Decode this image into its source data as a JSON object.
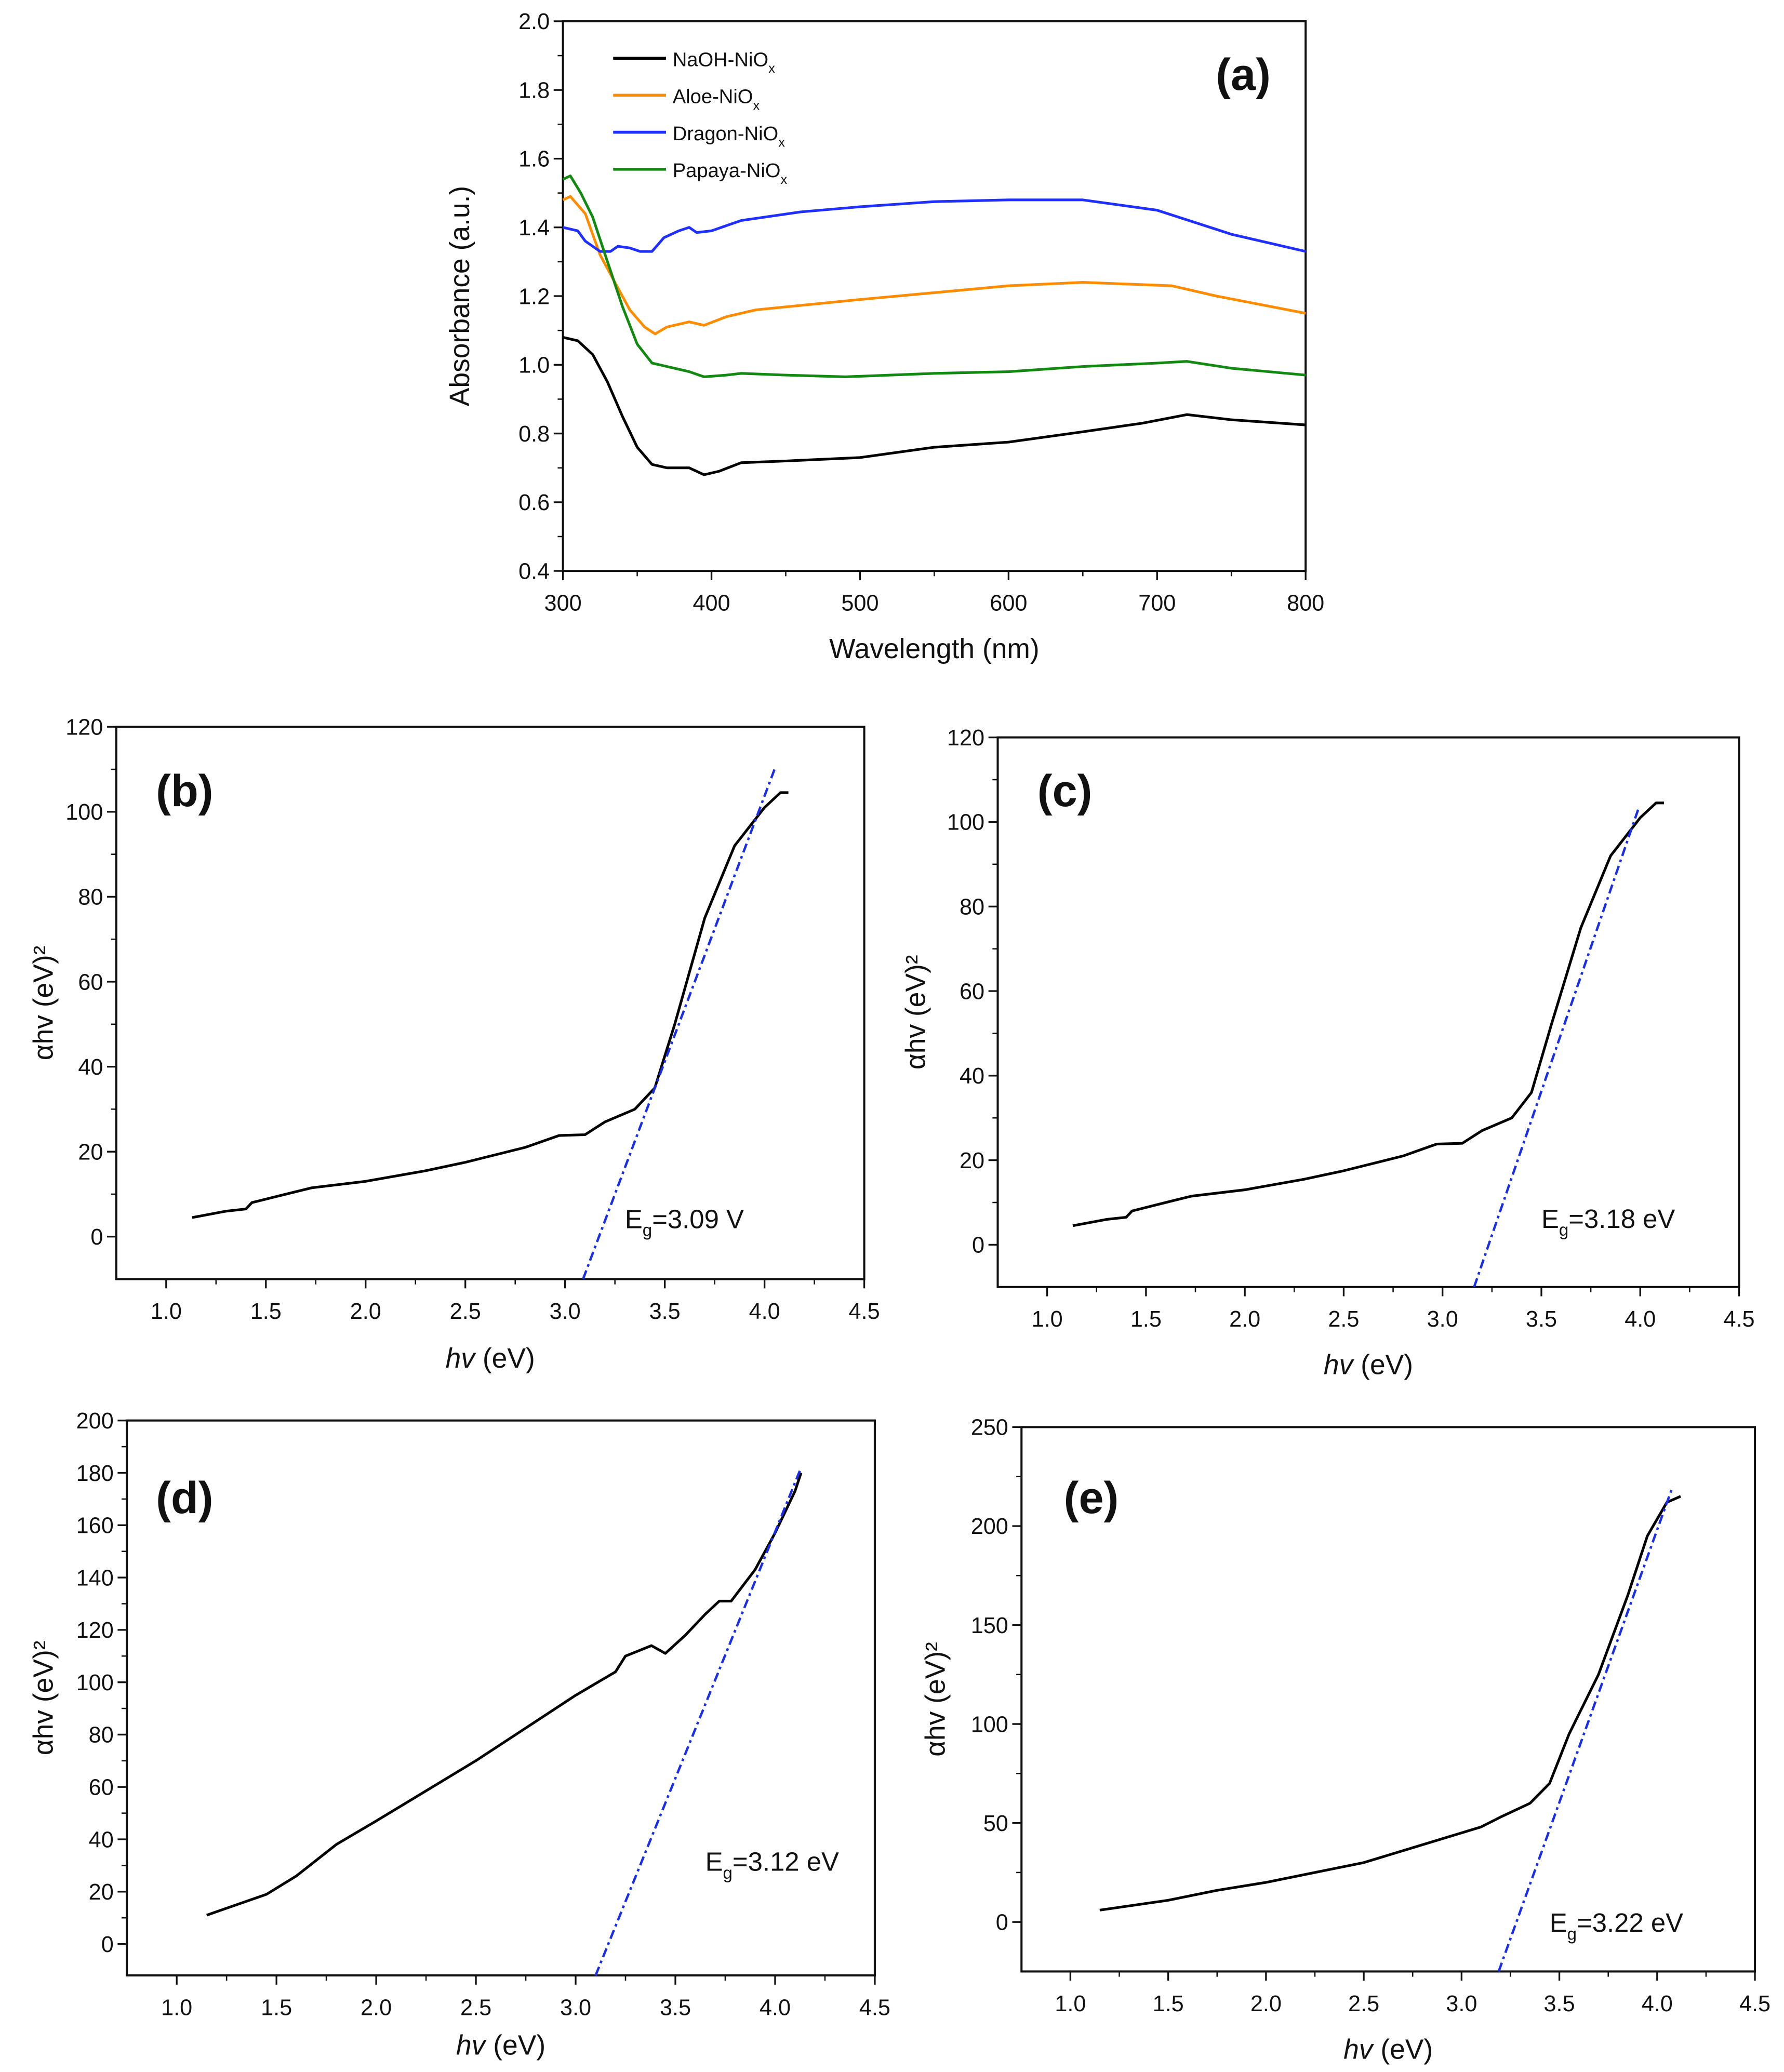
{
  "chart_data": [
    {
      "panel": "(a)",
      "type": "line",
      "xlabel": "Wavelength (nm)",
      "ylabel": "Absorbance (a.u.)",
      "xlim": [
        300,
        800
      ],
      "ylim": [
        0.4,
        2.0
      ],
      "xticks": [
        300,
        400,
        500,
        600,
        700,
        800
      ],
      "yticks": [
        0.4,
        0.6,
        0.8,
        1.0,
        1.2,
        1.4,
        1.6,
        1.8,
        2.0
      ],
      "yticklabels": [
        "0.4",
        "0.6",
        "0.8",
        "1.0",
        "1.2",
        "1.4",
        "1.6",
        "1.8",
        "2.0"
      ],
      "legend_position": "top-left",
      "series": [
        {
          "name": "NaOH-NiO",
          "sub": "x",
          "color": "#000000",
          "points": [
            [
              300,
              1.08
            ],
            [
              310,
              1.07
            ],
            [
              320,
              1.03
            ],
            [
              330,
              0.95
            ],
            [
              340,
              0.85
            ],
            [
              350,
              0.76
            ],
            [
              360,
              0.71
            ],
            [
              370,
              0.7
            ],
            [
              385,
              0.7
            ],
            [
              395,
              0.68
            ],
            [
              405,
              0.69
            ],
            [
              420,
              0.715
            ],
            [
              450,
              0.72
            ],
            [
              500,
              0.73
            ],
            [
              550,
              0.76
            ],
            [
              600,
              0.775
            ],
            [
              650,
              0.805
            ],
            [
              690,
              0.83
            ],
            [
              720,
              0.855
            ],
            [
              750,
              0.84
            ],
            [
              800,
              0.825
            ]
          ]
        },
        {
          "name": "Aloe-NiO",
          "sub": "x",
          "color": "#ff8c00",
          "points": [
            [
              300,
              1.48
            ],
            [
              305,
              1.49
            ],
            [
              315,
              1.44
            ],
            [
              325,
              1.32
            ],
            [
              335,
              1.24
            ],
            [
              345,
              1.16
            ],
            [
              355,
              1.11
            ],
            [
              362,
              1.09
            ],
            [
              370,
              1.11
            ],
            [
              385,
              1.125
            ],
            [
              395,
              1.115
            ],
            [
              410,
              1.14
            ],
            [
              430,
              1.16
            ],
            [
              500,
              1.19
            ],
            [
              550,
              1.21
            ],
            [
              600,
              1.23
            ],
            [
              650,
              1.24
            ],
            [
              710,
              1.23
            ],
            [
              740,
              1.2
            ],
            [
              800,
              1.15
            ]
          ]
        },
        {
          "name": "Dragon-NiO",
          "sub": "x",
          "color": "#1f2fff",
          "points": [
            [
              300,
              1.4
            ],
            [
              310,
              1.39
            ],
            [
              315,
              1.36
            ],
            [
              325,
              1.33
            ],
            [
              332,
              1.33
            ],
            [
              337,
              1.345
            ],
            [
              345,
              1.34
            ],
            [
              352,
              1.33
            ],
            [
              360,
              1.33
            ],
            [
              368,
              1.37
            ],
            [
              378,
              1.39
            ],
            [
              385,
              1.4
            ],
            [
              390,
              1.385
            ],
            [
              400,
              1.39
            ],
            [
              420,
              1.42
            ],
            [
              460,
              1.445
            ],
            [
              500,
              1.46
            ],
            [
              550,
              1.475
            ],
            [
              600,
              1.48
            ],
            [
              650,
              1.48
            ],
            [
              700,
              1.45
            ],
            [
              750,
              1.38
            ],
            [
              800,
              1.33
            ]
          ]
        },
        {
          "name": "Papaya-NiO",
          "sub": "x",
          "color": "#128a12",
          "points": [
            [
              300,
              1.54
            ],
            [
              305,
              1.55
            ],
            [
              312,
              1.5
            ],
            [
              320,
              1.43
            ],
            [
              330,
              1.3
            ],
            [
              340,
              1.17
            ],
            [
              350,
              1.06
            ],
            [
              360,
              1.005
            ],
            [
              375,
              0.99
            ],
            [
              385,
              0.98
            ],
            [
              395,
              0.965
            ],
            [
              410,
              0.97
            ],
            [
              420,
              0.975
            ],
            [
              450,
              0.97
            ],
            [
              490,
              0.965
            ],
            [
              550,
              0.975
            ],
            [
              600,
              0.98
            ],
            [
              650,
              0.995
            ],
            [
              700,
              1.005
            ],
            [
              720,
              1.01
            ],
            [
              750,
              0.99
            ],
            [
              800,
              0.97
            ]
          ]
        }
      ]
    },
    {
      "panel": "(b)",
      "type": "line",
      "xlabel": "hv (eV)",
      "ylabel": "αhv (eV)²",
      "xlim": [
        0.75,
        4.5
      ],
      "ylim": [
        -10,
        120
      ],
      "xticks": [
        1.0,
        1.5,
        2.0,
        2.5,
        3.0,
        3.5,
        4.0,
        4.5
      ],
      "xticklabels": [
        "1.0",
        "1.5",
        "2.0",
        "2.5",
        "3.0",
        "3.5",
        "4.0",
        "4.5"
      ],
      "yticks": [
        0,
        20,
        40,
        60,
        80,
        100,
        120
      ],
      "yticklabels": [
        "0",
        "20",
        "40",
        "60",
        "80",
        "100",
        "120"
      ],
      "annotation": {
        "E": "E",
        "sub": "g",
        "text": "=3.09 V",
        "at": [
          3.3,
          2
        ]
      },
      "curve": [
        [
          1.13,
          4.5
        ],
        [
          1.3,
          6
        ],
        [
          1.4,
          6.5
        ],
        [
          1.43,
          8
        ],
        [
          1.6,
          10
        ],
        [
          1.73,
          11.5
        ],
        [
          2.0,
          13
        ],
        [
          2.3,
          15.5
        ],
        [
          2.5,
          17.5
        ],
        [
          2.8,
          21
        ],
        [
          2.97,
          23.8
        ],
        [
          3.1,
          24
        ],
        [
          3.2,
          27
        ],
        [
          3.35,
          30
        ],
        [
          3.45,
          35
        ],
        [
          3.55,
          50
        ],
        [
          3.7,
          75
        ],
        [
          3.85,
          92
        ],
        [
          4.0,
          101
        ],
        [
          4.08,
          104.5
        ],
        [
          4.12,
          104.5
        ]
      ],
      "tangent": [
        [
          3.09,
          -10
        ],
        [
          4.05,
          110
        ]
      ]
    },
    {
      "panel": "(c)",
      "type": "line",
      "xlabel": "hv (eV)",
      "ylabel": "αhv (eV)²",
      "xlim": [
        0.75,
        4.5
      ],
      "ylim": [
        -10,
        120
      ],
      "xticks": [
        1.0,
        1.5,
        2.0,
        2.5,
        3.0,
        3.5,
        4.0,
        4.5
      ],
      "xticklabels": [
        "1.0",
        "1.5",
        "2.0",
        "2.5",
        "3.0",
        "3.5",
        "4.0",
        "4.5"
      ],
      "yticks": [
        0,
        20,
        40,
        60,
        80,
        100,
        120
      ],
      "yticklabels": [
        "0",
        "20",
        "40",
        "60",
        "80",
        "100",
        "120"
      ],
      "annotation": {
        "E": "E",
        "sub": "g",
        "text": "=3.18 eV",
        "at": [
          3.5,
          4
        ]
      },
      "curve": [
        [
          1.13,
          4.5
        ],
        [
          1.3,
          6
        ],
        [
          1.4,
          6.5
        ],
        [
          1.43,
          8
        ],
        [
          1.6,
          10
        ],
        [
          1.73,
          11.5
        ],
        [
          2.0,
          13
        ],
        [
          2.3,
          15.5
        ],
        [
          2.5,
          17.5
        ],
        [
          2.8,
          21
        ],
        [
          2.97,
          23.8
        ],
        [
          3.1,
          24
        ],
        [
          3.2,
          27
        ],
        [
          3.35,
          30
        ],
        [
          3.45,
          36
        ],
        [
          3.55,
          52
        ],
        [
          3.7,
          75
        ],
        [
          3.85,
          92
        ],
        [
          4.0,
          101
        ],
        [
          4.08,
          104.5
        ],
        [
          4.12,
          104.5
        ]
      ],
      "tangent": [
        [
          3.16,
          -10
        ],
        [
          3.99,
          103
        ]
      ]
    },
    {
      "panel": "(d)",
      "type": "line",
      "xlabel": "hv (eV)",
      "ylabel": "αhv (eV)²",
      "xlim": [
        0.75,
        4.5
      ],
      "ylim": [
        -12,
        200
      ],
      "xticks": [
        1.0,
        1.5,
        2.0,
        2.5,
        3.0,
        3.5,
        4.0,
        4.5
      ],
      "xticklabels": [
        "1.0",
        "1.5",
        "2.0",
        "2.5",
        "3.0",
        "3.5",
        "4.0",
        "4.5"
      ],
      "yticks": [
        0,
        20,
        40,
        60,
        80,
        100,
        120,
        140,
        160,
        180,
        200
      ],
      "yticklabels": [
        "0",
        "20",
        "40",
        "60",
        "80",
        "100",
        "120",
        "140",
        "160",
        "180",
        "200"
      ],
      "annotation": {
        "E": "E",
        "sub": "g",
        "text": "=3.12 eV",
        "at": [
          3.65,
          28
        ]
      },
      "curve": [
        [
          1.15,
          11
        ],
        [
          1.3,
          15
        ],
        [
          1.45,
          19
        ],
        [
          1.6,
          26
        ],
        [
          1.8,
          38
        ],
        [
          2.0,
          47
        ],
        [
          2.5,
          70
        ],
        [
          3.0,
          95
        ],
        [
          3.2,
          104
        ],
        [
          3.25,
          110
        ],
        [
          3.38,
          114
        ],
        [
          3.45,
          111
        ],
        [
          3.55,
          118
        ],
        [
          3.65,
          126
        ],
        [
          3.72,
          131
        ],
        [
          3.78,
          131
        ],
        [
          3.9,
          143
        ],
        [
          4.0,
          157
        ],
        [
          4.1,
          173
        ],
        [
          4.13,
          180
        ]
      ],
      "tangent": [
        [
          3.1,
          -12
        ],
        [
          4.13,
          182
        ]
      ]
    },
    {
      "panel": "(e)",
      "type": "line",
      "xlabel": "hv (eV)",
      "ylabel": "αhv (eV)²",
      "xlim": [
        0.75,
        4.5
      ],
      "ylim": [
        -25,
        250
      ],
      "xticks": [
        1.0,
        1.5,
        2.0,
        2.5,
        3.0,
        3.5,
        4.0,
        4.5
      ],
      "xticklabels": [
        "1.0",
        "1.5",
        "2.0",
        "2.5",
        "3.0",
        "3.5",
        "4.0",
        "4.5"
      ],
      "yticks": [
        0,
        50,
        100,
        150,
        200,
        250
      ],
      "yticklabels": [
        "0",
        "50",
        "100",
        "150",
        "200",
        "250"
      ],
      "annotation": {
        "E": "E",
        "sub": "g",
        "text": "=3.22 eV",
        "at": [
          3.45,
          -5
        ]
      },
      "curve": [
        [
          1.15,
          6
        ],
        [
          1.5,
          11
        ],
        [
          1.75,
          16
        ],
        [
          2.0,
          20
        ],
        [
          2.5,
          30
        ],
        [
          2.9,
          42
        ],
        [
          3.1,
          48
        ],
        [
          3.2,
          53
        ],
        [
          3.35,
          60
        ],
        [
          3.45,
          70
        ],
        [
          3.55,
          95
        ],
        [
          3.7,
          125
        ],
        [
          3.85,
          165
        ],
        [
          3.95,
          195
        ],
        [
          4.05,
          212
        ],
        [
          4.12,
          215
        ]
      ],
      "tangent": [
        [
          3.19,
          -25
        ],
        [
          4.08,
          220
        ]
      ]
    }
  ]
}
